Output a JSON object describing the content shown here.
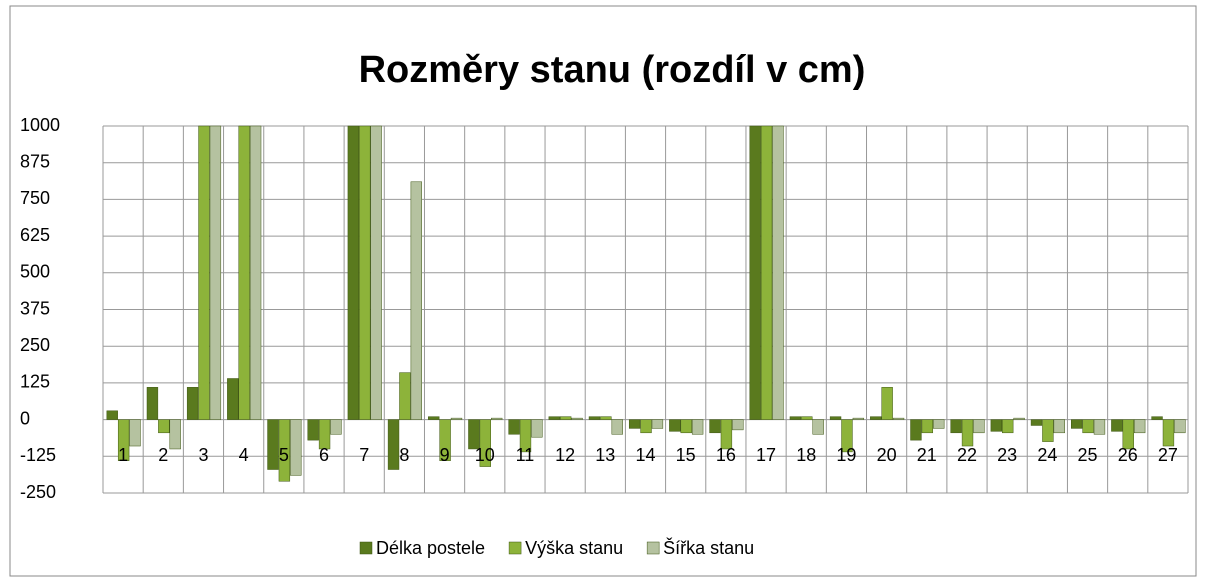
{
  "chart_data": {
    "type": "bar",
    "title": "Rozměry stanu (rozdíl v cm)",
    "categories": [
      "1",
      "2",
      "3",
      "4",
      "5",
      "6",
      "7",
      "8",
      "9",
      "10",
      "11",
      "12",
      "13",
      "14",
      "15",
      "16",
      "17",
      "18",
      "19",
      "20",
      "21",
      "22",
      "23",
      "24",
      "25",
      "26",
      "27"
    ],
    "series": [
      {
        "name": "Délka postele",
        "color": "#5a7a1e",
        "values": [
          30,
          110,
          110,
          140,
          -170,
          -70,
          1000,
          -170,
          10,
          -100,
          -50,
          10,
          10,
          -30,
          -40,
          -45,
          1000,
          10,
          10,
          10,
          -70,
          -45,
          -40,
          -20,
          -30,
          -40,
          10
        ]
      },
      {
        "name": "Výška stanu",
        "color": "#8db33a",
        "values": [
          -140,
          -45,
          1000,
          1000,
          -210,
          -100,
          1000,
          160,
          -140,
          -160,
          -110,
          10,
          10,
          -45,
          -45,
          -100,
          1000,
          10,
          -110,
          110,
          -45,
          -90,
          -45,
          -75,
          -45,
          -100,
          -90
        ]
      },
      {
        "name": "Šířka stanu",
        "color": "#b5c2a0",
        "values": [
          -90,
          -100,
          1000,
          1000,
          -190,
          -50,
          1000,
          810,
          5,
          5,
          -60,
          5,
          -50,
          -30,
          -50,
          -35,
          1000,
          -50,
          5,
          5,
          -30,
          -45,
          5,
          -45,
          -50,
          -45,
          -45
        ]
      }
    ],
    "ylim": [
      -250,
      1000
    ],
    "yticks": [
      -250,
      -125,
      0,
      125,
      250,
      375,
      500,
      625,
      750,
      875,
      1000
    ],
    "grid": true,
    "legend": "bottom"
  }
}
